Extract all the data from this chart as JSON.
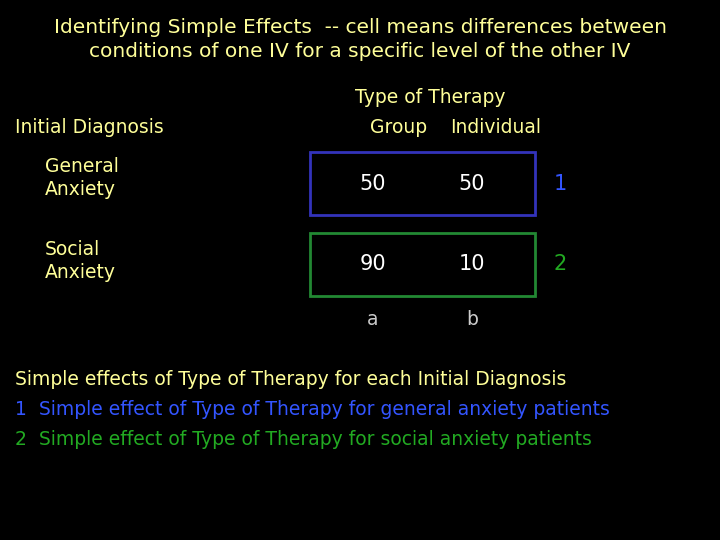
{
  "bg_color": "#000000",
  "title_line1": "Identifying Simple Effects  -- cell means differences between",
  "title_line2": "conditions of one IV for a specific level of the other IV",
  "title_color": "#ffff99",
  "title_fontsize": 14.5,
  "col_header_label": "Type of Therapy",
  "col_header_color": "#ffff99",
  "col_sub1": "Group",
  "col_sub2": "Individual",
  "col_sub_color": "#ffff99",
  "row_header": "Initial Diagnosis",
  "row_header_color": "#ffff99",
  "row1_label1": "General",
  "row1_label2": "Anxiety",
  "row2_label1": "Social",
  "row2_label2": "Anxiety",
  "row_label_color": "#ffff99",
  "cell_ga_group": "50",
  "cell_ga_indiv": "50",
  "cell_sa_group": "90",
  "cell_sa_indiv": "10",
  "cell_text_color": "#ffffff",
  "cell_fontsize": 15,
  "box1_edgecolor": "#3333bb",
  "box2_edgecolor": "#228833",
  "label_1_color": "#3355ff",
  "label_2_color": "#22aa22",
  "col_a_label": "a",
  "col_b_label": "b",
  "col_ab_color": "#cccccc",
  "simple_effects_title": "Simple effects of Type of Therapy for each Initial Diagnosis",
  "simple_effects_color": "#ffff99",
  "note1_num": "1",
  "note1_text": "  Simple effect of Type of Therapy for general anxiety patients",
  "note1_color": "#3355ff",
  "note2_num": "2",
  "note2_text": "  Simple effect of Type of Therapy for social anxiety patients",
  "note2_color": "#22aa22",
  "font_family": "DejaVu Sans",
  "label_fontsize": 13.5,
  "note_fontsize": 13.5
}
